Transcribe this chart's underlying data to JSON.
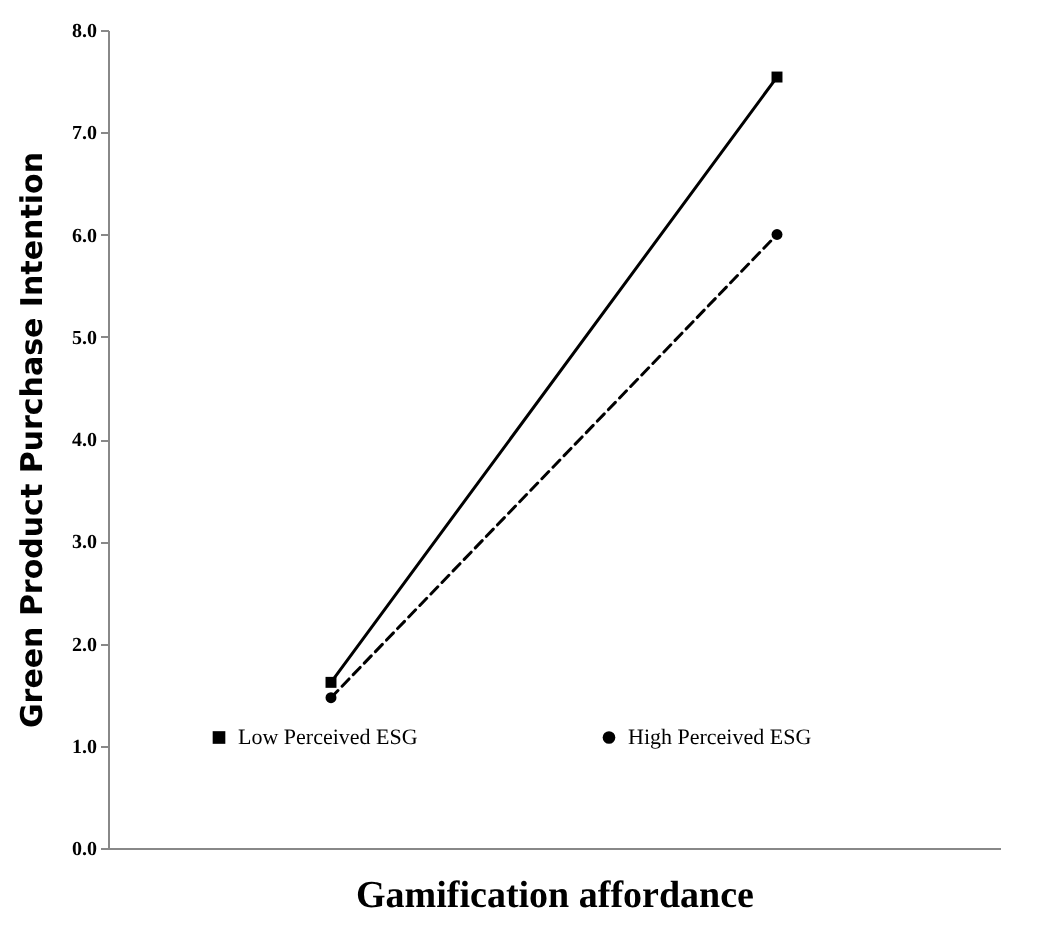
{
  "chart_data": {
    "type": "line",
    "xlabel": "Gamification affordance",
    "ylabel": "Green Product Purchase Intention",
    "categories": [
      null,
      null
    ],
    "series": [
      {
        "name": "Low Perceived ESG",
        "color": "#000000",
        "values": [
          1.62,
          7.54
        ],
        "marker": "square",
        "line_style": "solid"
      },
      {
        "name": "High Perceived ESG",
        "color": "#000000",
        "values": [
          1.47,
          6.0
        ],
        "marker": "circle",
        "line_style": "dashed"
      }
    ],
    "ylim": [
      0,
      8
    ],
    "yticks": [
      {
        "value": 0,
        "label": "0.0"
      },
      {
        "value": 1,
        "label": "1.0"
      },
      {
        "value": 2,
        "label": "2.0"
      },
      {
        "value": 3,
        "label": "3.0"
      },
      {
        "value": 4,
        "label": "4.0"
      },
      {
        "value": 5,
        "label": "5.0"
      },
      {
        "value": 6,
        "label": "6.0"
      },
      {
        "value": 7,
        "label": "7.0"
      },
      {
        "value": 8,
        "label": "8.0"
      }
    ],
    "grid": false,
    "legend": "bottom left"
  }
}
